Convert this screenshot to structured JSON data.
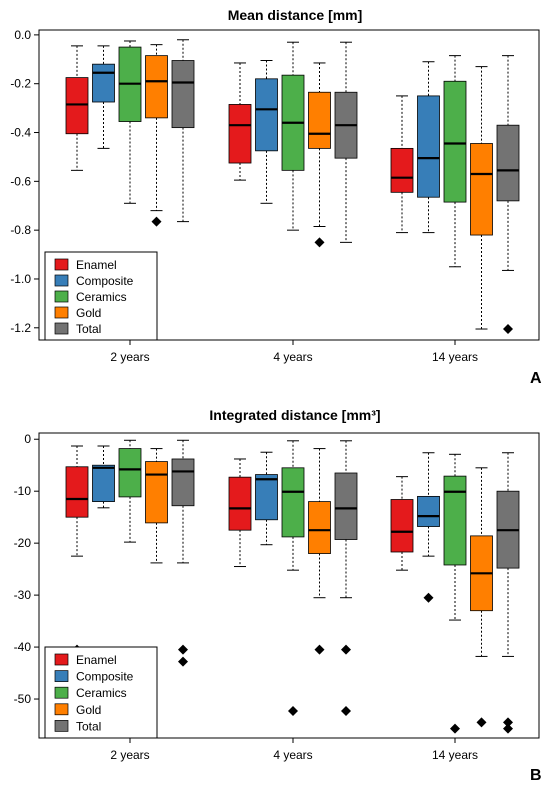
{
  "chart_data": [
    {
      "type": "box",
      "panel_letter": "A",
      "title": "Mean distance [mm]",
      "categories": [
        "2 years",
        "4 years",
        "14 years"
      ],
      "ylim": [
        -1.25,
        0.02
      ],
      "yticks": [
        0.0,
        -0.2,
        -0.4,
        -0.6,
        -0.8,
        -1.0,
        -1.2
      ],
      "ytick_labels": [
        "0.0",
        "-0.2",
        "-0.4",
        "-0.6",
        "-0.8",
        "-1.0",
        "-1.2"
      ],
      "legend_position": "bottom-left",
      "legend": [
        "Enamel",
        "Composite",
        "Ceramics",
        "Gold",
        "Total"
      ],
      "series": [
        {
          "name": "Enamel",
          "color": "#e41a1c",
          "boxes": [
            {
              "min": -0.555,
              "q1": -0.405,
              "median": -0.285,
              "q3": -0.175,
              "max": -0.045,
              "outliers": []
            },
            {
              "min": -0.595,
              "q1": -0.525,
              "median": -0.37,
              "q3": -0.285,
              "max": -0.115,
              "outliers": []
            },
            {
              "min": -0.81,
              "q1": -0.645,
              "median": -0.585,
              "q3": -0.465,
              "max": -0.25,
              "outliers": []
            }
          ]
        },
        {
          "name": "Composite",
          "color": "#377eb8",
          "boxes": [
            {
              "min": -0.465,
              "q1": -0.275,
              "median": -0.155,
              "q3": -0.12,
              "max": -0.045,
              "outliers": []
            },
            {
              "min": -0.69,
              "q1": -0.475,
              "median": -0.305,
              "q3": -0.18,
              "max": -0.105,
              "outliers": []
            },
            {
              "min": -0.81,
              "q1": -0.665,
              "median": -0.505,
              "q3": -0.25,
              "max": -0.11,
              "outliers": []
            }
          ]
        },
        {
          "name": "Ceramics",
          "color": "#4daf4a",
          "boxes": [
            {
              "min": -0.69,
              "q1": -0.355,
              "median": -0.2,
              "q3": -0.05,
              "max": -0.025,
              "outliers": []
            },
            {
              "min": -0.8,
              "q1": -0.555,
              "median": -0.36,
              "q3": -0.165,
              "max": -0.03,
              "outliers": []
            },
            {
              "min": -0.95,
              "q1": -0.685,
              "median": -0.445,
              "q3": -0.19,
              "max": -0.085,
              "outliers": []
            }
          ]
        },
        {
          "name": "Gold",
          "color": "#ff7f00",
          "boxes": [
            {
              "min": -0.72,
              "q1": -0.34,
              "median": -0.19,
              "q3": -0.085,
              "max": -0.04,
              "outliers": [
                -0.765
              ]
            },
            {
              "min": -0.785,
              "q1": -0.465,
              "median": -0.405,
              "q3": -0.235,
              "max": -0.115,
              "outliers": [
                -0.85
              ]
            },
            {
              "min": -1.205,
              "q1": -0.82,
              "median": -0.57,
              "q3": -0.445,
              "max": -0.13,
              "outliers": []
            }
          ]
        },
        {
          "name": "Total",
          "color": "#737373",
          "boxes": [
            {
              "min": -0.765,
              "q1": -0.38,
              "median": -0.195,
              "q3": -0.105,
              "max": -0.02,
              "outliers": []
            },
            {
              "min": -0.85,
              "q1": -0.505,
              "median": -0.37,
              "q3": -0.235,
              "max": -0.03,
              "outliers": []
            },
            {
              "min": -0.965,
              "q1": -0.68,
              "median": -0.555,
              "q3": -0.37,
              "max": -0.085,
              "outliers": [
                -1.205
              ]
            }
          ]
        }
      ]
    },
    {
      "type": "box",
      "panel_letter": "B",
      "title": "Integrated distance [mm³]",
      "categories": [
        "2 years",
        "4 years",
        "14 years"
      ],
      "ylim": [
        -57.5,
        1.2
      ],
      "yticks": [
        0,
        -10,
        -20,
        -30,
        -40,
        -50
      ],
      "ytick_labels": [
        "0",
        "-10",
        "-20",
        "-30",
        "-40",
        "-50"
      ],
      "legend_position": "bottom-left",
      "legend": [
        "Enamel",
        "Composite",
        "Ceramics",
        "Gold",
        "Total"
      ],
      "series": [
        {
          "name": "Enamel",
          "color": "#e41a1c",
          "boxes": [
            {
              "min": -22.5,
              "q1": -15.0,
              "median": -11.5,
              "q3": -5.3,
              "max": -1.3,
              "outliers": [
                -40.5
              ]
            },
            {
              "min": -24.5,
              "q1": -17.5,
              "median": -13.3,
              "q3": -7.3,
              "max": -3.8,
              "outliers": []
            },
            {
              "min": -25.2,
              "q1": -21.7,
              "median": -17.8,
              "q3": -11.6,
              "max": -7.2,
              "outliers": []
            }
          ]
        },
        {
          "name": "Composite",
          "color": "#377eb8",
          "boxes": [
            {
              "min": -13.2,
              "q1": -12.0,
              "median": -5.5,
              "q3": -5.0,
              "max": -1.3,
              "outliers": []
            },
            {
              "min": -20.3,
              "q1": -15.5,
              "median": -7.7,
              "q3": -6.8,
              "max": -2.5,
              "outliers": []
            },
            {
              "min": -22.5,
              "q1": -16.8,
              "median": -14.8,
              "q3": -11.0,
              "max": -2.6,
              "outliers": [
                -30.5
              ]
            }
          ]
        },
        {
          "name": "Ceramics",
          "color": "#4daf4a",
          "boxes": [
            {
              "min": -19.8,
              "q1": -11.1,
              "median": -5.8,
              "q3": -1.8,
              "max": -0.2,
              "outliers": [
                -42.8
              ]
            },
            {
              "min": -25.2,
              "q1": -18.8,
              "median": -10.1,
              "q3": -5.5,
              "max": -0.3,
              "outliers": [
                -52.3
              ]
            },
            {
              "min": -34.8,
              "q1": -24.2,
              "median": -10.1,
              "q3": -7.1,
              "max": -2.9,
              "outliers": [
                -55.7
              ]
            }
          ]
        },
        {
          "name": "Gold",
          "color": "#ff7f00",
          "boxes": [
            {
              "min": -23.8,
              "q1": -16.1,
              "median": -6.8,
              "q3": -4.3,
              "max": -1.8,
              "outliers": []
            },
            {
              "min": -30.5,
              "q1": -22.0,
              "median": -17.5,
              "q3": -12.0,
              "max": -1.8,
              "outliers": [
                -40.5
              ]
            },
            {
              "min": -41.8,
              "q1": -33.0,
              "median": -25.8,
              "q3": -18.6,
              "max": -5.5,
              "outliers": [
                -54.5
              ]
            }
          ]
        },
        {
          "name": "Total",
          "color": "#737373",
          "boxes": [
            {
              "min": -23.8,
              "q1": -12.8,
              "median": -6.2,
              "q3": -3.8,
              "max": -0.2,
              "outliers": [
                -40.5,
                -42.8
              ]
            },
            {
              "min": -30.5,
              "q1": -19.3,
              "median": -13.3,
              "q3": -6.5,
              "max": -0.3,
              "outliers": [
                -40.5,
                -52.3
              ]
            },
            {
              "min": -41.8,
              "q1": -24.8,
              "median": -17.5,
              "q3": -10.0,
              "max": -2.6,
              "outliers": [
                -54.5,
                -55.7
              ]
            }
          ]
        }
      ]
    }
  ]
}
